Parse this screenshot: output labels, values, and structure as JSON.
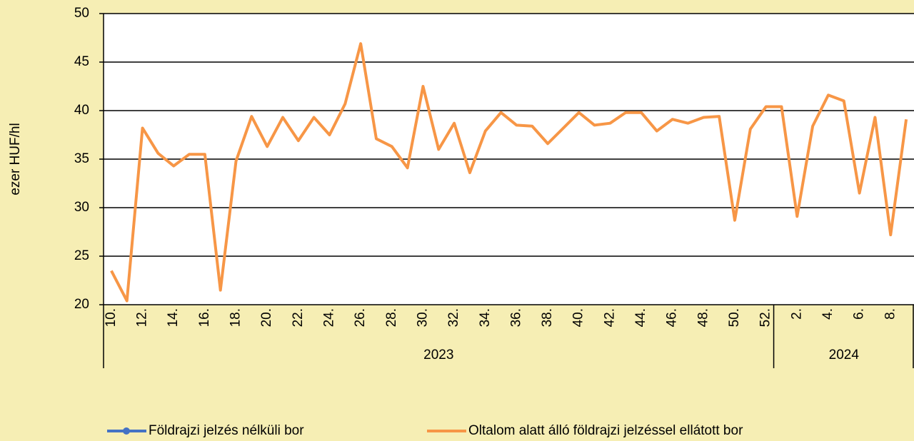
{
  "chart_data": {
    "type": "line",
    "y_label": "ezer HUF/hl",
    "categories": [
      "10.",
      null,
      "12.",
      null,
      "14.",
      null,
      "16.",
      null,
      "18.",
      null,
      "20.",
      null,
      "22.",
      null,
      "24.",
      null,
      "26.",
      null,
      "28.",
      null,
      "30.",
      null,
      "32.",
      null,
      "34.",
      null,
      "36.",
      null,
      "38.",
      null,
      "40.",
      null,
      "42.",
      null,
      "44.",
      null,
      "46.",
      null,
      "48.",
      null,
      "50.",
      null,
      "52.",
      null,
      "2.",
      null,
      "4.",
      null,
      "6.",
      null,
      "8.",
      null
    ],
    "groups": [
      {
        "name": "2023",
        "span": 43
      },
      {
        "name": "2024",
        "span": 9
      }
    ],
    "series": [
      {
        "name": "Földrajzi jelzés nélküli bor",
        "color": "#4472c4",
        "values": [
          null,
          null,
          null,
          null,
          null,
          null,
          null,
          null,
          null,
          null,
          null,
          null,
          null,
          null,
          null,
          null,
          null,
          null,
          null,
          null,
          null,
          null,
          null,
          null,
          null,
          null,
          null,
          null,
          null,
          null,
          null,
          null,
          null,
          null,
          null,
          null,
          null,
          null,
          null,
          null,
          null,
          null,
          null,
          null,
          null,
          null,
          null,
          null,
          null,
          null,
          null,
          null
        ]
      },
      {
        "name": "Oltalom alatt álló földrajzi jelzéssel ellátott bor",
        "color": "#f79646",
        "values": [
          23.5,
          20.4,
          38.2,
          35.6,
          34.3,
          35.5,
          35.5,
          21.5,
          34.8,
          39.4,
          36.3,
          39.3,
          36.9,
          39.3,
          37.5,
          40.7,
          46.9,
          37.1,
          36.3,
          34.1,
          42.5,
          36.0,
          38.7,
          33.6,
          37.9,
          39.8,
          38.5,
          38.4,
          36.6,
          38.2,
          39.8,
          38.5,
          38.7,
          39.8,
          39.8,
          37.9,
          39.1,
          38.7,
          39.3,
          39.4,
          28.7,
          38.1,
          40.4,
          40.4,
          29.1,
          38.4,
          41.6,
          41.0,
          31.5,
          39.3,
          27.2,
          39.1
        ]
      }
    ],
    "ylim": [
      20,
      50
    ],
    "yticks": [
      20,
      25,
      30,
      35,
      40,
      45,
      50
    ],
    "grid": true
  }
}
